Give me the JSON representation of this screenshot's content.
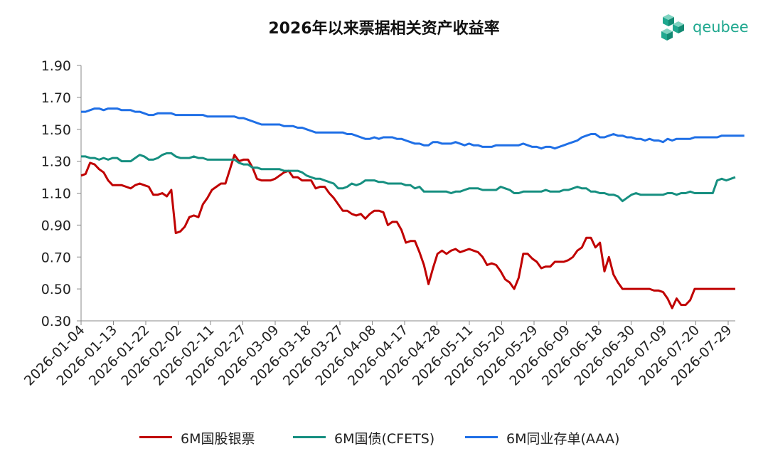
{
  "title": "2026年以来票据相关资产收益率",
  "brand": {
    "name": "qeubee",
    "color": "#1fa88f",
    "icon": "cube-logo-icon"
  },
  "chart_data": {
    "type": "line",
    "title": "2026年以来票据相关资产收益率",
    "ylim": [
      0.3,
      1.9
    ],
    "yticks": [
      "1.90",
      "1.70",
      "1.50",
      "1.30",
      "1.10",
      "0.90",
      "0.70",
      "0.50",
      "0.30"
    ],
    "xticks": [
      "2026-01-04",
      "2026-01-13",
      "2026-01-22",
      "2026-02-02",
      "2026-02-11",
      "2026-02-27",
      "2026-03-09",
      "2026-03-18",
      "2026-03-27",
      "2026-04-08",
      "2026-04-17",
      "2026-04-28",
      "2026-05-11",
      "2026-05-20",
      "2026-05-29",
      "2026-06-09",
      "2026-06-18",
      "2026-06-30",
      "2026-07-09",
      "2026-07-20",
      "2026-07-29"
    ],
    "grid": false,
    "legend_position": "bottom",
    "series": [
      {
        "name": "6M国股银票",
        "color": "#c00000",
        "values": [
          1.21,
          1.22,
          1.29,
          1.28,
          1.25,
          1.23,
          1.18,
          1.15,
          1.15,
          1.15,
          1.14,
          1.13,
          1.15,
          1.16,
          1.15,
          1.14,
          1.09,
          1.09,
          1.1,
          1.08,
          1.12,
          0.85,
          0.86,
          0.89,
          0.95,
          0.96,
          0.95,
          1.03,
          1.07,
          1.12,
          1.14,
          1.16,
          1.16,
          1.25,
          1.34,
          1.3,
          1.31,
          1.31,
          1.26,
          1.19,
          1.18,
          1.18,
          1.18,
          1.19,
          1.21,
          1.23,
          1.24,
          1.2,
          1.2,
          1.18,
          1.18,
          1.18,
          1.13,
          1.14,
          1.14,
          1.1,
          1.07,
          1.03,
          0.99,
          0.99,
          0.97,
          0.96,
          0.97,
          0.94,
          0.97,
          0.99,
          0.99,
          0.98,
          0.9,
          0.92,
          0.92,
          0.87,
          0.79,
          0.8,
          0.8,
          0.73,
          0.65,
          0.53,
          0.63,
          0.72,
          0.74,
          0.72,
          0.74,
          0.75,
          0.73,
          0.74,
          0.75,
          0.74,
          0.73,
          0.7,
          0.65,
          0.66,
          0.65,
          0.61,
          0.56,
          0.54,
          0.5,
          0.57,
          0.72,
          0.72,
          0.69,
          0.67,
          0.63,
          0.64,
          0.64,
          0.67,
          0.67,
          0.67,
          0.68,
          0.7,
          0.74,
          0.76,
          0.82,
          0.82,
          0.76,
          0.79,
          0.61,
          0.7,
          0.59,
          0.54,
          0.5,
          0.5,
          0.5,
          0.5,
          0.5,
          0.5,
          0.5,
          0.49,
          0.49,
          0.48,
          0.44,
          0.38,
          0.44,
          0.4,
          0.4,
          0.43,
          0.5,
          0.5,
          0.5,
          0.5,
          0.5,
          0.5,
          0.5,
          0.5,
          0.5,
          0.5
        ]
      },
      {
        "name": "6M国债(CFETS)",
        "color": "#168f80",
        "values": [
          1.33,
          1.33,
          1.32,
          1.32,
          1.31,
          1.32,
          1.31,
          1.32,
          1.32,
          1.3,
          1.3,
          1.3,
          1.32,
          1.34,
          1.33,
          1.31,
          1.31,
          1.32,
          1.34,
          1.35,
          1.35,
          1.33,
          1.32,
          1.32,
          1.32,
          1.33,
          1.32,
          1.32,
          1.31,
          1.31,
          1.31,
          1.31,
          1.31,
          1.31,
          1.31,
          1.29,
          1.28,
          1.28,
          1.26,
          1.26,
          1.25,
          1.25,
          1.25,
          1.25,
          1.25,
          1.24,
          1.24,
          1.24,
          1.24,
          1.23,
          1.21,
          1.2,
          1.19,
          1.19,
          1.18,
          1.17,
          1.16,
          1.13,
          1.13,
          1.14,
          1.16,
          1.15,
          1.16,
          1.18,
          1.18,
          1.18,
          1.17,
          1.17,
          1.16,
          1.16,
          1.16,
          1.16,
          1.15,
          1.15,
          1.13,
          1.14,
          1.11,
          1.11,
          1.11,
          1.11,
          1.11,
          1.11,
          1.1,
          1.11,
          1.11,
          1.12,
          1.13,
          1.13,
          1.13,
          1.12,
          1.12,
          1.12,
          1.12,
          1.14,
          1.13,
          1.12,
          1.1,
          1.1,
          1.11,
          1.11,
          1.11,
          1.11,
          1.11,
          1.12,
          1.11,
          1.11,
          1.11,
          1.12,
          1.12,
          1.13,
          1.14,
          1.13,
          1.13,
          1.11,
          1.11,
          1.1,
          1.1,
          1.09,
          1.09,
          1.08,
          1.05,
          1.07,
          1.09,
          1.1,
          1.09,
          1.09,
          1.09,
          1.09,
          1.09,
          1.09,
          1.1,
          1.1,
          1.09,
          1.1,
          1.1,
          1.11,
          1.1,
          1.1,
          1.1,
          1.1,
          1.1,
          1.18,
          1.19,
          1.18,
          1.19,
          1.2
        ]
      },
      {
        "name": "6M同业存单(AAA)",
        "color": "#1f6fe6",
        "values": [
          1.61,
          1.61,
          1.62,
          1.63,
          1.63,
          1.62,
          1.63,
          1.63,
          1.63,
          1.62,
          1.62,
          1.62,
          1.61,
          1.61,
          1.6,
          1.59,
          1.59,
          1.6,
          1.6,
          1.6,
          1.6,
          1.59,
          1.59,
          1.59,
          1.59,
          1.59,
          1.59,
          1.59,
          1.58,
          1.58,
          1.58,
          1.58,
          1.58,
          1.58,
          1.58,
          1.57,
          1.57,
          1.56,
          1.55,
          1.54,
          1.53,
          1.53,
          1.53,
          1.53,
          1.53,
          1.52,
          1.52,
          1.52,
          1.51,
          1.51,
          1.5,
          1.49,
          1.48,
          1.48,
          1.48,
          1.48,
          1.48,
          1.48,
          1.48,
          1.47,
          1.47,
          1.46,
          1.45,
          1.44,
          1.44,
          1.45,
          1.44,
          1.45,
          1.45,
          1.45,
          1.44,
          1.44,
          1.43,
          1.42,
          1.41,
          1.41,
          1.4,
          1.4,
          1.42,
          1.42,
          1.41,
          1.41,
          1.41,
          1.42,
          1.41,
          1.4,
          1.41,
          1.4,
          1.4,
          1.39,
          1.39,
          1.39,
          1.4,
          1.4,
          1.4,
          1.4,
          1.4,
          1.4,
          1.41,
          1.4,
          1.39,
          1.39,
          1.38,
          1.39,
          1.39,
          1.38,
          1.39,
          1.4,
          1.41,
          1.42,
          1.43,
          1.45,
          1.46,
          1.47,
          1.47,
          1.45,
          1.45,
          1.46,
          1.47,
          1.46,
          1.46,
          1.45,
          1.45,
          1.44,
          1.44,
          1.43,
          1.44,
          1.43,
          1.43,
          1.42,
          1.44,
          1.43,
          1.44,
          1.44,
          1.44,
          1.44,
          1.45,
          1.45,
          1.45,
          1.45,
          1.45,
          1.45,
          1.46,
          1.46,
          1.46,
          1.46,
          1.46,
          1.46
        ]
      }
    ]
  }
}
